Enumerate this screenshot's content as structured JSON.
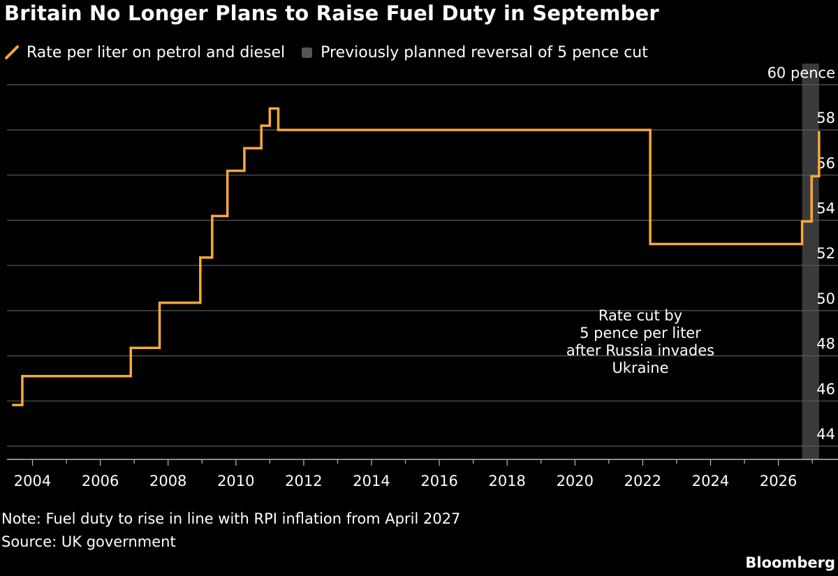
{
  "title": "Britain No Longer Plans to Raise Fuel Duty in September",
  "legend": {
    "line_label": "Rate per liter on petrol and diesel",
    "band_label": "Previously planned reversal of 5 pence cut"
  },
  "colors": {
    "background": "#000000",
    "line": "#f8a83c",
    "band": "#3a3a3a",
    "grid": "#5a5a5a",
    "text": "#ffffff"
  },
  "annotation": {
    "lines": [
      "Rate cut by",
      "5 pence per liter",
      "after Russia invades",
      "Ukraine"
    ]
  },
  "footer": {
    "note": "Note: Fuel duty to rise in line with RPI inflation from April 2027",
    "source": "Source: UK government",
    "brand": "Bloomberg"
  },
  "chart_data": {
    "type": "line",
    "title": "Britain No Longer Plans to Raise Fuel Duty in September",
    "ylabel": "",
    "xlabel": "",
    "y_unit_label": "60 pence",
    "ylim": [
      43,
      61
    ],
    "xlim": [
      2003.35,
      2027.9
    ],
    "y_ticks": [
      44,
      46,
      48,
      50,
      52,
      54,
      56,
      58,
      60
    ],
    "y_tick_labels": [
      "44",
      "46",
      "48",
      "50",
      "52",
      "54",
      "56",
      "58",
      "60 pence"
    ],
    "x_ticks": [
      2004,
      2006,
      2008,
      2010,
      2012,
      2014,
      2016,
      2018,
      2020,
      2022,
      2024,
      2026
    ],
    "x_tick_labels": [
      "2004",
      "2006",
      "2008",
      "2010",
      "2012",
      "2014",
      "2016",
      "2018",
      "2020",
      "2022",
      "2024",
      "2026"
    ],
    "grid": "horizontal",
    "legend_position": "top-left",
    "band": {
      "name": "Previously planned reversal of 5 pence cut",
      "x_start": 2026.7,
      "x_end": 2027.2
    },
    "series": [
      {
        "name": "Rate per liter on petrol and diesel",
        "step": true,
        "points": [
          [
            2003.4,
            45.82
          ],
          [
            2003.7,
            47.1
          ],
          [
            2006.9,
            48.35
          ],
          [
            2007.75,
            50.35
          ],
          [
            2008.95,
            52.35
          ],
          [
            2009.3,
            54.19
          ],
          [
            2009.75,
            56.19
          ],
          [
            2010.25,
            57.19
          ],
          [
            2010.75,
            58.19
          ],
          [
            2011.0,
            58.95
          ],
          [
            2011.25,
            58.0
          ],
          [
            2022.22,
            52.95
          ],
          [
            2026.7,
            53.95
          ],
          [
            2026.98,
            55.95
          ],
          [
            2027.2,
            57.95
          ]
        ],
        "end_x": 2027.2
      }
    ]
  }
}
